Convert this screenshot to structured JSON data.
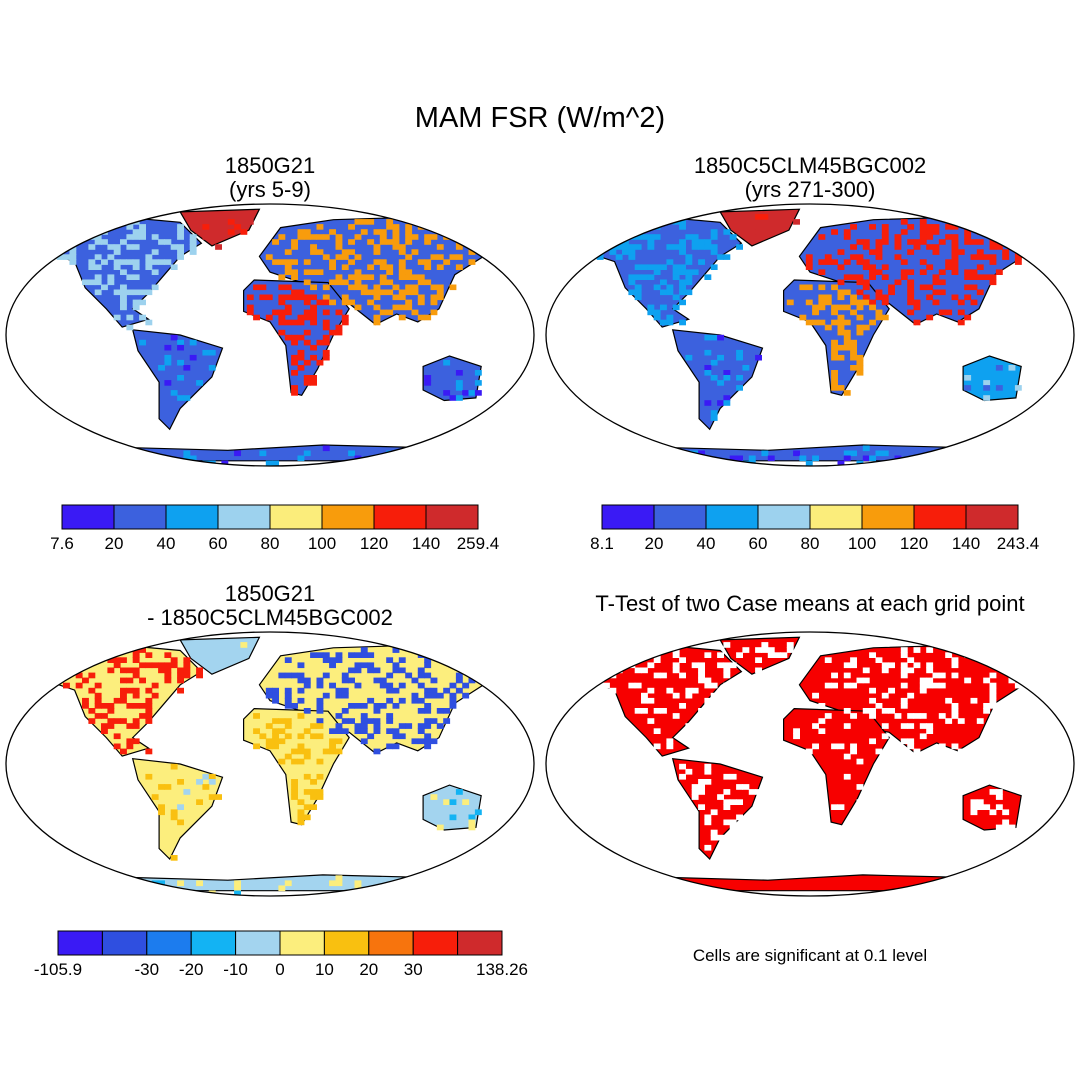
{
  "title": "MAM FSR (W/m^2)",
  "colors": {
    "ocean": "#ffffff",
    "outline": "#000000",
    "seq": [
      "#3a1af5",
      "#3c61de",
      "#0ea1f0",
      "#9dd2ee",
      "#fbed7b",
      "#f89c0c",
      "#f71e0a",
      "#cf2a2c"
    ],
    "diff": [
      "#3a1af5",
      "#2f4fe0",
      "#1c7cee",
      "#13b3f3",
      "#a3d4ef",
      "#fcee7d",
      "#f9c010",
      "#f7740d",
      "#f71e0a",
      "#cf2a2c"
    ],
    "sig": "#f70000"
  },
  "panels": {
    "top_left": {
      "title_line1": "1850G21",
      "title_line2": "(yrs 5-9)",
      "colorbar_labels": [
        "7.6",
        "20",
        "40",
        "60",
        "80",
        "100",
        "120",
        "140",
        "259.4"
      ]
    },
    "top_right": {
      "title_line1": "1850C5CLM45BGC002",
      "title_line2": "(yrs 271-300)",
      "colorbar_labels": [
        "8.1",
        "20",
        "40",
        "60",
        "80",
        "100",
        "120",
        "140",
        "243.4"
      ]
    },
    "bottom_left": {
      "title_line1": "1850G21",
      "title_line2": "- 1850C5CLM45BGC002",
      "colorbar_labels": [
        "-105.9",
        "",
        "-30",
        "-20",
        "-10",
        "0",
        "10",
        "20",
        "30",
        "",
        "138.26"
      ]
    },
    "bottom_right": {
      "title_line1": "T-Test of two Case means at each grid point",
      "note": "Cells are significant at 0.1 level"
    }
  }
}
